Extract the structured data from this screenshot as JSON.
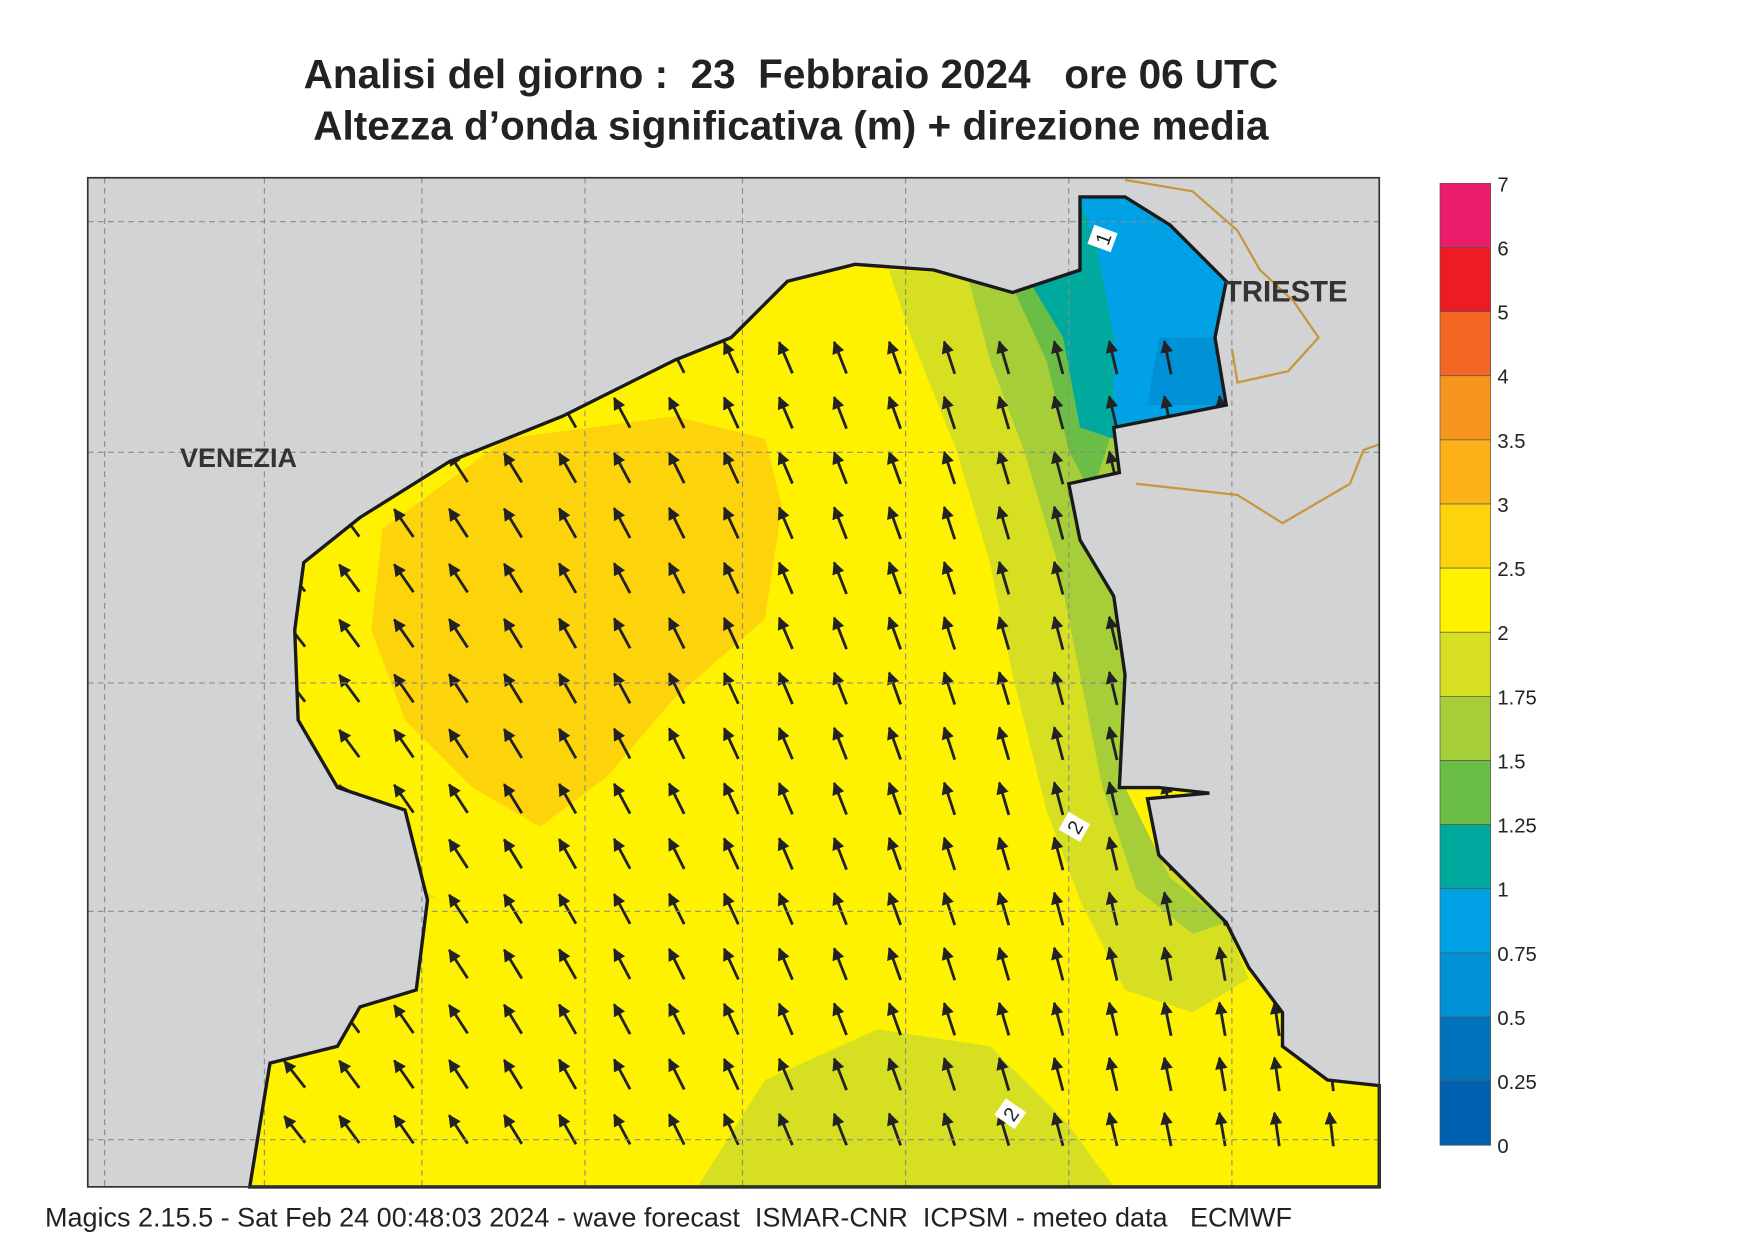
{
  "header": {
    "title": [
      "Analisi del giorno :  23  Febbraio 2024   ore 06 UTC",
      "Altezza d’onda significativa (m) + direzione media"
    ]
  },
  "map": {
    "labels": [
      "VENEZIA",
      "TRIESTE"
    ],
    "contour_labels": [
      "1",
      "2",
      "2"
    ]
  },
  "colorbar": {
    "levels": [
      "7",
      "6",
      "5",
      "4",
      "3.5",
      "3",
      "2.5",
      "2",
      "1.75",
      "1.5",
      "1.25",
      "1",
      "0.75",
      "0.5",
      "0.25",
      "0"
    ],
    "colors": [
      "#ec1c6c",
      "#ed1c24",
      "#f26522",
      "#f7941d",
      "#fbb117",
      "#fdd30c",
      "#fff200",
      "#d7df23",
      "#a6ce39",
      "#6abd45",
      "#00a99d",
      "#00a2e5",
      "#0090d5",
      "#0072bc",
      "#0060b0"
    ]
  },
  "footer": "Magics 2.15.5 - Sat Feb 24 00:48:03 2024 - wave forecast  ISMAR-CNR  ICPSM - meteo data   ECMWF"
}
